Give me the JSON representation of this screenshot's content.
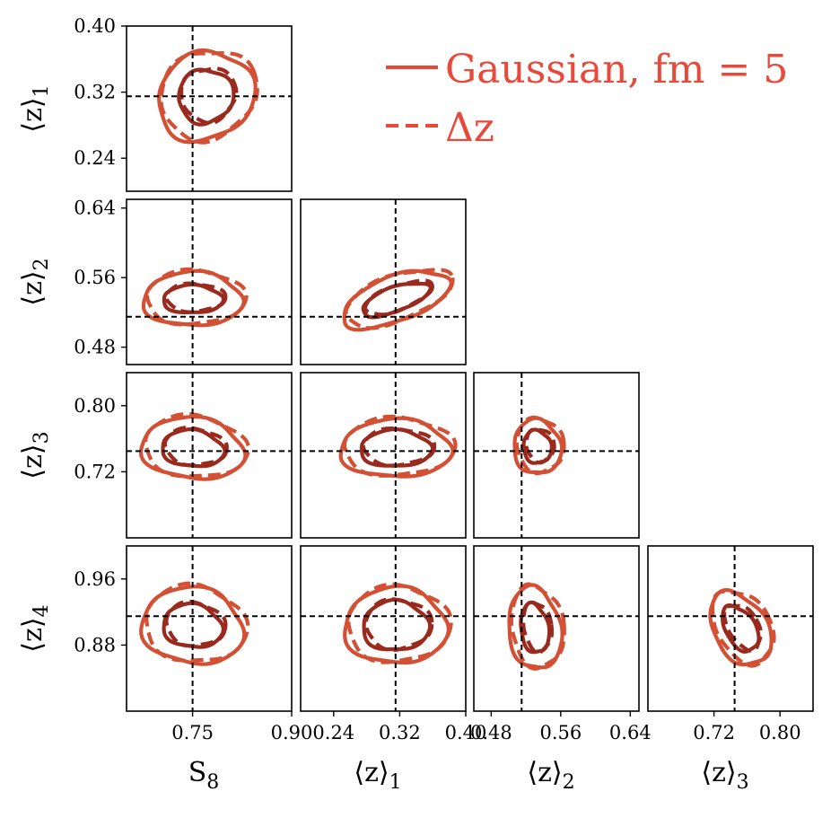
{
  "chart_data": {
    "type": "corner",
    "parameters": [
      {
        "label": "S",
        "label_sub": "8",
        "range": [
          0.65,
          0.9
        ],
        "ticks": [
          0.75,
          0.9
        ],
        "truth": 0.75
      },
      {
        "label": "⟨z⟩",
        "label_sub": "1",
        "range": [
          0.2,
          0.4
        ],
        "ticks": [
          0.24,
          0.32,
          0.4
        ],
        "truth": 0.315
      },
      {
        "label": "⟨z⟩",
        "label_sub": "2",
        "range": [
          0.46,
          0.65
        ],
        "ticks": [
          0.48,
          0.56,
          0.64
        ],
        "truth": 0.515
      },
      {
        "label": "⟨z⟩",
        "label_sub": "3",
        "range": [
          0.64,
          0.84
        ],
        "ticks": [
          0.72,
          0.8
        ],
        "truth": 0.745
      },
      {
        "label": "⟨z⟩",
        "label_sub": "4",
        "range": [
          0.8,
          1.0
        ],
        "ticks": [
          0.88,
          0.96
        ],
        "truth": 0.915
      }
    ],
    "legend": {
      "position": "top-right",
      "entries": [
        {
          "label": "Gaussian, fm = 5",
          "style": "solid"
        },
        {
          "label": "Δz",
          "style": "dashed"
        }
      ]
    },
    "colors": {
      "inner": "#9a2a1e",
      "outer": "#d35034",
      "legend": "#e8493a",
      "truth": "#000000"
    },
    "series": [
      {
        "name": "Gaussian, fm = 5",
        "style": "solid"
      },
      {
        "name": "Δz",
        "style": "dashed"
      }
    ],
    "contours": [
      {
        "xi": 0,
        "yi": 1,
        "cx": 0.77,
        "cy": 0.315,
        "rx_in": 0.042,
        "ry_in": 0.032,
        "rx_out": 0.075,
        "ry_out": 0.052,
        "tilt": 0.5
      },
      {
        "xi": 0,
        "yi": 2,
        "cx": 0.75,
        "cy": 0.535,
        "rx_in": 0.045,
        "ry_in": 0.016,
        "rx_out": 0.075,
        "ry_out": 0.031,
        "tilt": 0.0
      },
      {
        "xi": 1,
        "yi": 2,
        "cx": 0.315,
        "cy": 0.535,
        "rx_in": 0.043,
        "ry_in": 0.014,
        "rx_out": 0.068,
        "ry_out": 0.026,
        "tilt": 0.35
      },
      {
        "xi": 0,
        "yi": 3,
        "cx": 0.75,
        "cy": 0.748,
        "rx_in": 0.047,
        "ry_in": 0.022,
        "rx_out": 0.078,
        "ry_out": 0.037,
        "tilt": -0.1
      },
      {
        "xi": 1,
        "yi": 3,
        "cx": 0.315,
        "cy": 0.748,
        "rx_in": 0.043,
        "ry_in": 0.022,
        "rx_out": 0.067,
        "ry_out": 0.035,
        "tilt": 0.0
      },
      {
        "xi": 2,
        "yi": 3,
        "cx": 0.533,
        "cy": 0.75,
        "rx_in": 0.016,
        "ry_in": 0.02,
        "rx_out": 0.027,
        "ry_out": 0.033,
        "tilt": 0.2
      },
      {
        "xi": 0,
        "yi": 4,
        "cx": 0.75,
        "cy": 0.903,
        "rx_in": 0.045,
        "ry_in": 0.026,
        "rx_out": 0.077,
        "ry_out": 0.046,
        "tilt": -0.15
      },
      {
        "xi": 1,
        "yi": 4,
        "cx": 0.315,
        "cy": 0.903,
        "rx_in": 0.04,
        "ry_in": 0.03,
        "rx_out": 0.062,
        "ry_out": 0.046,
        "tilt": 0.0
      },
      {
        "xi": 2,
        "yi": 4,
        "cx": 0.53,
        "cy": 0.9,
        "rx_in": 0.016,
        "ry_in": 0.03,
        "rx_out": 0.03,
        "ry_out": 0.05,
        "tilt": 0.15
      },
      {
        "xi": 3,
        "yi": 4,
        "cx": 0.752,
        "cy": 0.9,
        "rx_in": 0.018,
        "ry_in": 0.03,
        "rx_out": 0.032,
        "ry_out": 0.048,
        "tilt": 0.55
      }
    ]
  }
}
